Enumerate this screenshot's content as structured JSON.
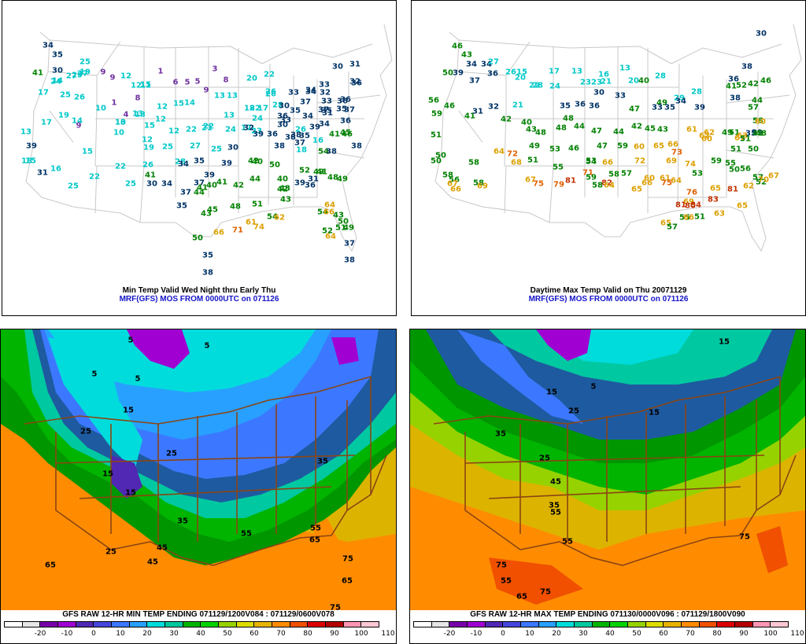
{
  "panels": {
    "top_left": {
      "caption_line1": "Min Temp Valid Wed Night thru Early Thu",
      "caption_line2": "MRF(GFS) MOS FROM 0000UTC on 071126"
    },
    "top_right": {
      "caption_line1": "Daytime Max Temp Valid on Thu 20071129",
      "caption_line2": "MRF(GFS) MOS FROM 0000UTC on 071126"
    },
    "bottom_left": {
      "title": "GFS RAW 12-HR MIN TEMP ENDING 071129/1200V084 : 071129/0600V078",
      "contour_labels": [
        "5",
        "5",
        "5",
        "5",
        "15",
        "25",
        "15",
        "25",
        "15",
        "25",
        "35",
        "65",
        "45",
        "55",
        "75",
        "65",
        "75",
        "35",
        "45",
        "55",
        "65"
      ]
    },
    "bottom_right": {
      "title": "GFS RAW 12-HR MAX TEMP ENDING 071130/0000V096 : 071129/1800V090",
      "contour_labels": [
        "15",
        "5",
        "15",
        "25",
        "35",
        "15",
        "25",
        "45",
        "55",
        "35",
        "75",
        "55",
        "65",
        "75",
        "55",
        "75"
      ]
    }
  },
  "colorbar": {
    "labels": [
      "-20",
      "-10",
      "0",
      "10",
      "20",
      "30",
      "40",
      "50",
      "60",
      "70",
      "80",
      "90",
      "100",
      "110"
    ],
    "colors": [
      "#ffffff",
      "#e6e6e6",
      "#7800aa",
      "#a000d2",
      "#5028b4",
      "#4646dc",
      "#3c78ff",
      "#28a0ff",
      "#00dcdc",
      "#00c8a0",
      "#00b400",
      "#00d200",
      "#96d200",
      "#dcdc00",
      "#e6b400",
      "#ff8c00",
      "#f05000",
      "#dc0000",
      "#b40000",
      "#ff96b4",
      "#ffc8d2"
    ]
  },
  "stations_tl": [
    {
      "t": "34",
      "c": "#003366"
    },
    {
      "t": "35",
      "c": "#003366"
    },
    {
      "t": "25",
      "c": "#00c8c8"
    },
    {
      "t": "19",
      "c": "#00c8c8"
    },
    {
      "t": "41",
      "c": "#008000"
    },
    {
      "t": "30",
      "c": "#003366"
    },
    {
      "t": "27",
      "c": "#00c8c8"
    },
    {
      "t": "14",
      "c": "#00c8c8"
    },
    {
      "t": "9",
      "c": "#7030a0"
    },
    {
      "t": "9",
      "c": "#7030a0"
    },
    {
      "t": "1",
      "c": "#7030a0"
    },
    {
      "t": "3",
      "c": "#7030a0"
    },
    {
      "t": "12",
      "c": "#00c8c8"
    },
    {
      "t": "15",
      "c": "#00c8c8"
    },
    {
      "t": "27",
      "c": "#00c8c8"
    },
    {
      "t": "29",
      "c": "#00c8c8"
    },
    {
      "t": "24",
      "c": "#00c8c8"
    },
    {
      "t": "25",
      "c": "#00c8c8"
    },
    {
      "t": "8",
      "c": "#7030a0"
    },
    {
      "t": "6",
      "c": "#7030a0"
    },
    {
      "t": "5",
      "c": "#7030a0"
    },
    {
      "t": "5",
      "c": "#7030a0"
    },
    {
      "t": "20",
      "c": "#00c8c8"
    },
    {
      "t": "22",
      "c": "#00c8c8"
    },
    {
      "t": "30",
      "c": "#003366"
    },
    {
      "t": "31",
      "c": "#003366"
    },
    {
      "t": "33",
      "c": "#003366"
    },
    {
      "t": "32",
      "c": "#003366"
    },
    {
      "t": "17",
      "c": "#00c8c8"
    },
    {
      "t": "26",
      "c": "#00c8c8"
    },
    {
      "t": "12",
      "c": "#00c8c8"
    },
    {
      "t": "11",
      "c": "#00c8c8"
    },
    {
      "t": "9",
      "c": "#7030a0"
    },
    {
      "t": "13",
      "c": "#00c8c8"
    },
    {
      "t": "13",
      "c": "#00c8c8"
    },
    {
      "t": "18",
      "c": "#00c8c8"
    },
    {
      "t": "26",
      "c": "#00c8c8"
    },
    {
      "t": "33",
      "c": "#003366"
    },
    {
      "t": "34",
      "c": "#003366"
    },
    {
      "t": "32",
      "c": "#003366"
    },
    {
      "t": "36",
      "c": "#003366"
    },
    {
      "t": "36",
      "c": "#003366"
    },
    {
      "t": "8",
      "c": "#7030a0"
    },
    {
      "t": "37",
      "c": "#003366"
    },
    {
      "t": "37",
      "c": "#003366"
    },
    {
      "t": "33",
      "c": "#003366"
    },
    {
      "t": "36",
      "c": "#003366"
    },
    {
      "t": "26",
      "c": "#00c8c8"
    },
    {
      "t": "10",
      "c": "#00c8c8"
    },
    {
      "t": "1",
      "c": "#7030a0"
    },
    {
      "t": "12",
      "c": "#00c8c8"
    },
    {
      "t": "15",
      "c": "#00c8c8"
    },
    {
      "t": "14",
      "c": "#00c8c8"
    },
    {
      "t": "13",
      "c": "#00c8c8"
    },
    {
      "t": "17",
      "c": "#00c8c8"
    },
    {
      "t": "22",
      "c": "#00c8c8"
    },
    {
      "t": "28",
      "c": "#00c8c8"
    },
    {
      "t": "30",
      "c": "#003366"
    },
    {
      "t": "35",
      "c": "#003366"
    },
    {
      "t": "30",
      "c": "#003366"
    },
    {
      "t": "35",
      "c": "#003366"
    },
    {
      "t": "37",
      "c": "#003366"
    },
    {
      "t": "34",
      "c": "#003366"
    },
    {
      "t": "19",
      "c": "#00c8c8"
    },
    {
      "t": "14",
      "c": "#00c8c8"
    },
    {
      "t": "4",
      "c": "#7030a0"
    },
    {
      "t": "13",
      "c": "#00c8c8"
    },
    {
      "t": "10",
      "c": "#00c8c8"
    },
    {
      "t": "12",
      "c": "#00c8c8"
    },
    {
      "t": "22",
      "c": "#00c8c8"
    },
    {
      "t": "22",
      "c": "#00c8c8"
    },
    {
      "t": "13",
      "c": "#00c8c8"
    },
    {
      "t": "24",
      "c": "#00c8c8"
    },
    {
      "t": "36",
      "c": "#003366"
    },
    {
      "t": "33",
      "c": "#003366"
    },
    {
      "t": "34",
      "c": "#003366"
    },
    {
      "t": "35",
      "c": "#003366"
    },
    {
      "t": "31",
      "c": "#003366"
    },
    {
      "t": "39",
      "c": "#003366"
    },
    {
      "t": "36",
      "c": "#003366"
    },
    {
      "t": "35",
      "c": "#003366"
    },
    {
      "t": "34",
      "c": "#003366"
    },
    {
      "t": "26",
      "c": "#00c8c8"
    },
    {
      "t": "17",
      "c": "#00c8c8"
    },
    {
      "t": "9",
      "c": "#7030a0"
    },
    {
      "t": "10",
      "c": "#00c8c8"
    },
    {
      "t": "13",
      "c": "#00c8c8"
    },
    {
      "t": "15",
      "c": "#00c8c8"
    },
    {
      "t": "12",
      "c": "#00c8c8"
    },
    {
      "t": "21",
      "c": "#00c8c8"
    },
    {
      "t": "24",
      "c": "#00c8c8"
    },
    {
      "t": "17",
      "c": "#00c8c8"
    },
    {
      "t": "23",
      "c": "#00c8c8"
    },
    {
      "t": "32",
      "c": "#003366"
    },
    {
      "t": "36",
      "c": "#003366"
    },
    {
      "t": "38",
      "c": "#003366"
    },
    {
      "t": "41",
      "c": "#008000"
    },
    {
      "t": "46",
      "c": "#008000"
    },
    {
      "t": "45",
      "c": "#008000"
    },
    {
      "t": "13",
      "c": "#00c8c8"
    },
    {
      "t": "12",
      "c": "#00c8c8"
    },
    {
      "t": "19",
      "c": "#00c8c8"
    },
    {
      "t": "25",
      "c": "#00c8c8"
    },
    {
      "t": "27",
      "c": "#00c8c8"
    },
    {
      "t": "25",
      "c": "#00c8c8"
    },
    {
      "t": "30",
      "c": "#003366"
    },
    {
      "t": "39",
      "c": "#003366"
    },
    {
      "t": "38",
      "c": "#003366"
    },
    {
      "t": "38",
      "c": "#003366"
    },
    {
      "t": "37",
      "c": "#003366"
    },
    {
      "t": "16",
      "c": "#00c8c8"
    },
    {
      "t": "15",
      "c": "#00c8c8"
    },
    {
      "t": "22",
      "c": "#00c8c8"
    },
    {
      "t": "26",
      "c": "#00c8c8"
    },
    {
      "t": "28",
      "c": "#00c8c8"
    },
    {
      "t": "35",
      "c": "#003366"
    },
    {
      "t": "39",
      "c": "#003366"
    },
    {
      "t": "42",
      "c": "#008000"
    },
    {
      "t": "54",
      "c": "#008000"
    },
    {
      "t": "38",
      "c": "#003366"
    },
    {
      "t": "38",
      "c": "#003366"
    },
    {
      "t": "18",
      "c": "#00c8c8"
    },
    {
      "t": "15",
      "c": "#00c8c8"
    },
    {
      "t": "22",
      "c": "#00c8c8"
    },
    {
      "t": "34",
      "c": "#003366"
    },
    {
      "t": "41",
      "c": "#008000"
    },
    {
      "t": "39",
      "c": "#003366"
    },
    {
      "t": "40",
      "c": "#008000"
    },
    {
      "t": "50",
      "c": "#008000"
    },
    {
      "t": "52",
      "c": "#008000"
    },
    {
      "t": "41",
      "c": "#008000"
    },
    {
      "t": "49",
      "c": "#008000"
    },
    {
      "t": "31",
      "c": "#003366"
    },
    {
      "t": "25",
      "c": "#00c8c8"
    },
    {
      "t": "25",
      "c": "#00c8c8"
    },
    {
      "t": "30",
      "c": "#003366"
    },
    {
      "t": "34",
      "c": "#003366"
    },
    {
      "t": "37",
      "c": "#003366"
    },
    {
      "t": "40",
      "c": "#008000"
    },
    {
      "t": "41",
      "c": "#008000"
    },
    {
      "t": "42",
      "c": "#008000"
    },
    {
      "t": "44",
      "c": "#008000"
    },
    {
      "t": "40",
      "c": "#008000"
    },
    {
      "t": "39",
      "c": "#003366"
    },
    {
      "t": "49",
      "c": "#008000"
    },
    {
      "t": "48",
      "c": "#008000"
    },
    {
      "t": "36",
      "c": "#003366"
    },
    {
      "t": "31",
      "c": "#003366"
    },
    {
      "t": "43",
      "c": "#008000"
    },
    {
      "t": "42",
      "c": "#008000"
    },
    {
      "t": "41",
      "c": "#008000"
    },
    {
      "t": "43",
      "c": "#008000"
    },
    {
      "t": "43",
      "c": "#008000"
    },
    {
      "t": "37",
      "c": "#003366"
    },
    {
      "t": "35",
      "c": "#003366"
    },
    {
      "t": "44",
      "c": "#008000"
    },
    {
      "t": "45",
      "c": "#008000"
    },
    {
      "t": "48",
      "c": "#008000"
    },
    {
      "t": "51",
      "c": "#008000"
    },
    {
      "t": "54",
      "c": "#008000"
    },
    {
      "t": "62",
      "c": "#dca000"
    },
    {
      "t": "64",
      "c": "#dca000"
    },
    {
      "t": "43",
      "c": "#008000"
    },
    {
      "t": "50",
      "c": "#008000"
    },
    {
      "t": "54",
      "c": "#008000"
    },
    {
      "t": "66",
      "c": "#dca000"
    },
    {
      "t": "52",
      "c": "#008000"
    },
    {
      "t": "51",
      "c": "#008000"
    },
    {
      "t": "49",
      "c": "#008000"
    },
    {
      "t": "50",
      "c": "#008000"
    },
    {
      "t": "66",
      "c": "#dca000"
    },
    {
      "t": "71",
      "c": "#e06000"
    },
    {
      "t": "61",
      "c": "#dca000"
    },
    {
      "t": "74",
      "c": "#dca000"
    },
    {
      "t": "64",
      "c": "#dca000"
    },
    {
      "t": "37",
      "c": "#003366"
    },
    {
      "t": "35",
      "c": "#003366"
    },
    {
      "t": "38",
      "c": "#003366"
    },
    {
      "t": "38",
      "c": "#003366"
    },
    {
      "t": "39",
      "c": "#003366"
    },
    {
      "t": "16",
      "c": "#00c8c8"
    },
    {
      "t": "18",
      "c": "#00c8c8"
    }
  ],
  "stations_tr": [
    {
      "t": "46",
      "c": "#008000"
    },
    {
      "t": "43",
      "c": "#008000"
    },
    {
      "t": "34",
      "c": "#003366"
    },
    {
      "t": "27",
      "c": "#00c8c8"
    },
    {
      "t": "50",
      "c": "#008000"
    },
    {
      "t": "39",
      "c": "#003366"
    },
    {
      "t": "34",
      "c": "#003366"
    },
    {
      "t": "36",
      "c": "#003366"
    },
    {
      "t": "26",
      "c": "#00c8c8"
    },
    {
      "t": "15",
      "c": "#00c8c8"
    },
    {
      "t": "17",
      "c": "#00c8c8"
    },
    {
      "t": "13",
      "c": "#00c8c8"
    },
    {
      "t": "16",
      "c": "#00c8c8"
    },
    {
      "t": "13",
      "c": "#00c8c8"
    },
    {
      "t": "30",
      "c": "#003366"
    },
    {
      "t": "20",
      "c": "#00c8c8"
    },
    {
      "t": "23",
      "c": "#00c8c8"
    },
    {
      "t": "23",
      "c": "#00c8c8"
    },
    {
      "t": "21",
      "c": "#00c8c8"
    },
    {
      "t": "20",
      "c": "#00c8c8"
    },
    {
      "t": "28",
      "c": "#00c8c8"
    },
    {
      "t": "36",
      "c": "#003366"
    },
    {
      "t": "42",
      "c": "#008000"
    },
    {
      "t": "38",
      "c": "#003366"
    },
    {
      "t": "46",
      "c": "#008000"
    },
    {
      "t": "37",
      "c": "#003366"
    },
    {
      "t": "28",
      "c": "#00c8c8"
    },
    {
      "t": "22",
      "c": "#00c8c8"
    },
    {
      "t": "24",
      "c": "#00c8c8"
    },
    {
      "t": "30",
      "c": "#003366"
    },
    {
      "t": "33",
      "c": "#003366"
    },
    {
      "t": "40",
      "c": "#008000"
    },
    {
      "t": "47",
      "c": "#008000"
    },
    {
      "t": "49",
      "c": "#008000"
    },
    {
      "t": "38",
      "c": "#003366"
    },
    {
      "t": "28",
      "c": "#00c8c8"
    },
    {
      "t": "29",
      "c": "#00c8c8"
    },
    {
      "t": "41",
      "c": "#008000"
    },
    {
      "t": "52",
      "c": "#008000"
    },
    {
      "t": "56",
      "c": "#008000"
    },
    {
      "t": "32",
      "c": "#003366"
    },
    {
      "t": "21",
      "c": "#00c8c8"
    },
    {
      "t": "35",
      "c": "#003366"
    },
    {
      "t": "36",
      "c": "#003366"
    },
    {
      "t": "36",
      "c": "#003366"
    },
    {
      "t": "33",
      "c": "#003366"
    },
    {
      "t": "35",
      "c": "#003366"
    },
    {
      "t": "34",
      "c": "#003366"
    },
    {
      "t": "39",
      "c": "#003366"
    },
    {
      "t": "44",
      "c": "#008000"
    },
    {
      "t": "57",
      "c": "#008000"
    },
    {
      "t": "58",
      "c": "#008000"
    },
    {
      "t": "60",
      "c": "#dca000"
    },
    {
      "t": "59",
      "c": "#008000"
    },
    {
      "t": "46",
      "c": "#008000"
    },
    {
      "t": "41",
      "c": "#008000"
    },
    {
      "t": "31",
      "c": "#003366"
    },
    {
      "t": "42",
      "c": "#008000"
    },
    {
      "t": "44",
      "c": "#008000"
    },
    {
      "t": "47",
      "c": "#008000"
    },
    {
      "t": "44",
      "c": "#008000"
    },
    {
      "t": "42",
      "c": "#008000"
    },
    {
      "t": "45",
      "c": "#008000"
    },
    {
      "t": "43",
      "c": "#008000"
    },
    {
      "t": "61",
      "c": "#dca000"
    },
    {
      "t": "62",
      "c": "#dca000"
    },
    {
      "t": "49",
      "c": "#008000"
    },
    {
      "t": "51",
      "c": "#008000"
    },
    {
      "t": "35",
      "c": "#003366"
    },
    {
      "t": "39",
      "c": "#003366"
    },
    {
      "t": "40",
      "c": "#008000"
    },
    {
      "t": "43",
      "c": "#008000"
    },
    {
      "t": "48",
      "c": "#008000"
    },
    {
      "t": "48",
      "c": "#008000"
    },
    {
      "t": "48",
      "c": "#008000"
    },
    {
      "t": "49",
      "c": "#008000"
    },
    {
      "t": "53",
      "c": "#008000"
    },
    {
      "t": "46",
      "c": "#008000"
    },
    {
      "t": "47",
      "c": "#008000"
    },
    {
      "t": "59",
      "c": "#008000"
    },
    {
      "t": "60",
      "c": "#dca000"
    },
    {
      "t": "65",
      "c": "#dca000"
    },
    {
      "t": "66",
      "c": "#dca000"
    },
    {
      "t": "60",
      "c": "#dca000"
    },
    {
      "t": "62",
      "c": "#dca000"
    },
    {
      "t": "67",
      "c": "#dca000"
    },
    {
      "t": "63",
      "c": "#dca000"
    },
    {
      "t": "51",
      "c": "#008000"
    },
    {
      "t": "48",
      "c": "#008000"
    },
    {
      "t": "42",
      "c": "#008000"
    },
    {
      "t": "51",
      "c": "#008000"
    },
    {
      "t": "50",
      "c": "#008000"
    },
    {
      "t": "51",
      "c": "#008000"
    },
    {
      "t": "50",
      "c": "#008000"
    },
    {
      "t": "58",
      "c": "#008000"
    },
    {
      "t": "50",
      "c": "#008000"
    },
    {
      "t": "56",
      "c": "#008000"
    },
    {
      "t": "58",
      "c": "#008000"
    },
    {
      "t": "64",
      "c": "#dca000"
    },
    {
      "t": "72",
      "c": "#e06000"
    },
    {
      "t": "68",
      "c": "#dca000"
    },
    {
      "t": "51",
      "c": "#008000"
    },
    {
      "t": "55",
      "c": "#008000"
    },
    {
      "t": "53",
      "c": "#008000"
    },
    {
      "t": "54",
      "c": "#008000"
    },
    {
      "t": "66",
      "c": "#dca000"
    },
    {
      "t": "72",
      "c": "#dca000"
    },
    {
      "t": "69",
      "c": "#dca000"
    },
    {
      "t": "73",
      "c": "#e06000"
    },
    {
      "t": "74",
      "c": "#dca000"
    },
    {
      "t": "53",
      "c": "#008000"
    },
    {
      "t": "59",
      "c": "#008000"
    },
    {
      "t": "56",
      "c": "#008000"
    },
    {
      "t": "55",
      "c": "#008000"
    },
    {
      "t": "57",
      "c": "#008000"
    },
    {
      "t": "52",
      "c": "#008000"
    },
    {
      "t": "50",
      "c": "#008000"
    },
    {
      "t": "58",
      "c": "#008000"
    },
    {
      "t": "67",
      "c": "#dca000"
    },
    {
      "t": "67",
      "c": "#dca000"
    },
    {
      "t": "71",
      "c": "#e06000"
    },
    {
      "t": "59",
      "c": "#008000"
    },
    {
      "t": "58",
      "c": "#008000"
    },
    {
      "t": "58",
      "c": "#008000"
    },
    {
      "t": "57",
      "c": "#008000"
    },
    {
      "t": "60",
      "c": "#dca000"
    },
    {
      "t": "61",
      "c": "#dca000"
    },
    {
      "t": "64",
      "c": "#dca000"
    },
    {
      "t": "76",
      "c": "#e06000"
    },
    {
      "t": "65",
      "c": "#dca000"
    },
    {
      "t": "62",
      "c": "#dca000"
    },
    {
      "t": "67",
      "c": "#dca000"
    },
    {
      "t": "70",
      "c": "#dca000"
    },
    {
      "t": "66",
      "c": "#dca000"
    },
    {
      "t": "69",
      "c": "#dca000"
    },
    {
      "t": "75",
      "c": "#e06000"
    },
    {
      "t": "79",
      "c": "#e06000"
    },
    {
      "t": "81",
      "c": "#c03000"
    },
    {
      "t": "82",
      "c": "#c03000"
    },
    {
      "t": "64",
      "c": "#dca000"
    },
    {
      "t": "65",
      "c": "#dca000"
    },
    {
      "t": "66",
      "c": "#dca000"
    },
    {
      "t": "69",
      "c": "#dca000"
    },
    {
      "t": "80",
      "c": "#c03000"
    },
    {
      "t": "84",
      "c": "#c03000"
    },
    {
      "t": "83",
      "c": "#c03000"
    },
    {
      "t": "75",
      "c": "#e06000"
    },
    {
      "t": "81",
      "c": "#c03000"
    },
    {
      "t": "81",
      "c": "#c03000"
    },
    {
      "t": "51",
      "c": "#008000"
    },
    {
      "t": "65",
      "c": "#dca000"
    },
    {
      "t": "57",
      "c": "#008000"
    },
    {
      "t": "55",
      "c": "#008000"
    },
    {
      "t": "66",
      "c": "#dca000"
    },
    {
      "t": "63",
      "c": "#dca000"
    },
    {
      "t": "65",
      "c": "#dca000"
    }
  ]
}
